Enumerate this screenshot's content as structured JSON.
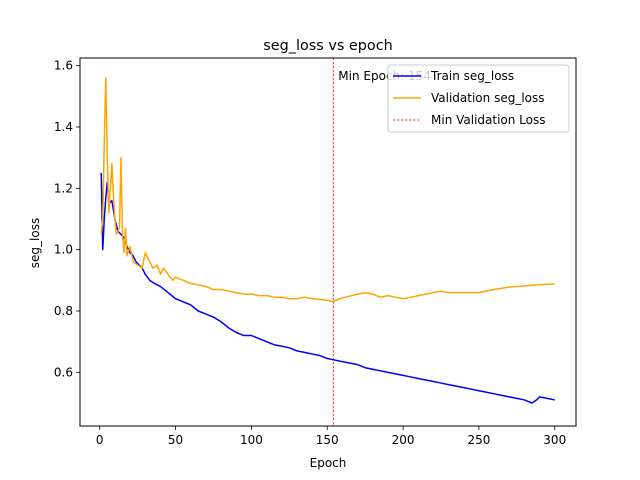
{
  "chart_data": {
    "type": "line",
    "title": "seg_loss vs epoch",
    "xlabel": "Epoch",
    "ylabel": "seg_loss",
    "xlim": [
      -13,
      314
    ],
    "ylim": [
      0.425,
      1.625
    ],
    "xticks": [
      0,
      50,
      100,
      150,
      200,
      250,
      300
    ],
    "yticks": [
      0.6,
      0.8,
      1.0,
      1.2,
      1.4,
      1.6
    ],
    "ytick_labels": [
      "0.6",
      "0.8",
      "1.0",
      "1.2",
      "1.4",
      "1.6"
    ],
    "grid": false,
    "legend_position": "top-right",
    "min_line": {
      "x": 154,
      "label": "Min Epoch: 154",
      "color": "#ff0000",
      "legend": "Min Validation Loss"
    },
    "series": [
      {
        "name": "Train seg_loss",
        "color": "#0000ff",
        "x": [
          1,
          2,
          3,
          4,
          5,
          6,
          8,
          10,
          12,
          14,
          16,
          18,
          20,
          22,
          24,
          26,
          28,
          30,
          33,
          36,
          40,
          45,
          50,
          55,
          60,
          65,
          70,
          75,
          80,
          85,
          90,
          95,
          100,
          105,
          110,
          115,
          120,
          125,
          130,
          135,
          140,
          145,
          150,
          155,
          160,
          165,
          170,
          175,
          180,
          185,
          190,
          195,
          200,
          205,
          210,
          215,
          220,
          225,
          230,
          235,
          240,
          245,
          250,
          255,
          260,
          265,
          270,
          275,
          280,
          285,
          288,
          290,
          295,
          300
        ],
        "values": [
          1.25,
          1.0,
          1.1,
          1.17,
          1.22,
          1.15,
          1.16,
          1.1,
          1.06,
          1.05,
          1.04,
          1.01,
          0.99,
          0.98,
          0.96,
          0.95,
          0.94,
          0.92,
          0.9,
          0.89,
          0.88,
          0.86,
          0.84,
          0.83,
          0.82,
          0.8,
          0.79,
          0.78,
          0.765,
          0.745,
          0.73,
          0.72,
          0.72,
          0.71,
          0.7,
          0.69,
          0.685,
          0.68,
          0.67,
          0.665,
          0.66,
          0.655,
          0.645,
          0.64,
          0.635,
          0.63,
          0.625,
          0.615,
          0.61,
          0.605,
          0.6,
          0.595,
          0.59,
          0.585,
          0.58,
          0.575,
          0.57,
          0.565,
          0.56,
          0.555,
          0.55,
          0.545,
          0.54,
          0.535,
          0.53,
          0.525,
          0.52,
          0.515,
          0.51,
          0.5,
          0.51,
          0.52,
          0.515,
          0.51
        ]
      },
      {
        "name": "Validation seg_loss",
        "color": "#ffa500",
        "x": [
          1,
          2,
          3,
          4,
          5,
          6,
          7,
          8,
          9,
          10,
          11,
          12,
          13,
          14,
          15,
          16,
          17,
          18,
          20,
          22,
          25,
          28,
          30,
          33,
          35,
          38,
          40,
          42,
          45,
          48,
          50,
          55,
          60,
          65,
          70,
          75,
          80,
          85,
          90,
          95,
          100,
          105,
          110,
          115,
          120,
          125,
          130,
          135,
          140,
          145,
          150,
          154,
          158,
          162,
          166,
          170,
          175,
          180,
          185,
          190,
          195,
          200,
          205,
          210,
          215,
          220,
          225,
          230,
          240,
          250,
          260,
          270,
          280,
          290,
          300
        ],
        "values": [
          1.05,
          1.1,
          1.35,
          1.56,
          1.3,
          1.12,
          1.2,
          1.28,
          1.18,
          1.1,
          1.05,
          1.06,
          1.07,
          1.3,
          1.05,
          0.99,
          1.07,
          0.98,
          1.01,
          0.96,
          0.95,
          0.94,
          0.99,
          0.96,
          0.94,
          0.95,
          0.92,
          0.94,
          0.92,
          0.9,
          0.91,
          0.9,
          0.89,
          0.885,
          0.88,
          0.87,
          0.87,
          0.865,
          0.86,
          0.855,
          0.855,
          0.85,
          0.85,
          0.845,
          0.845,
          0.84,
          0.84,
          0.845,
          0.84,
          0.838,
          0.835,
          0.83,
          0.84,
          0.845,
          0.85,
          0.855,
          0.86,
          0.855,
          0.845,
          0.85,
          0.845,
          0.84,
          0.845,
          0.85,
          0.855,
          0.86,
          0.865,
          0.86,
          0.86,
          0.86,
          0.87,
          0.878,
          0.882,
          0.886,
          0.888
        ]
      }
    ]
  }
}
